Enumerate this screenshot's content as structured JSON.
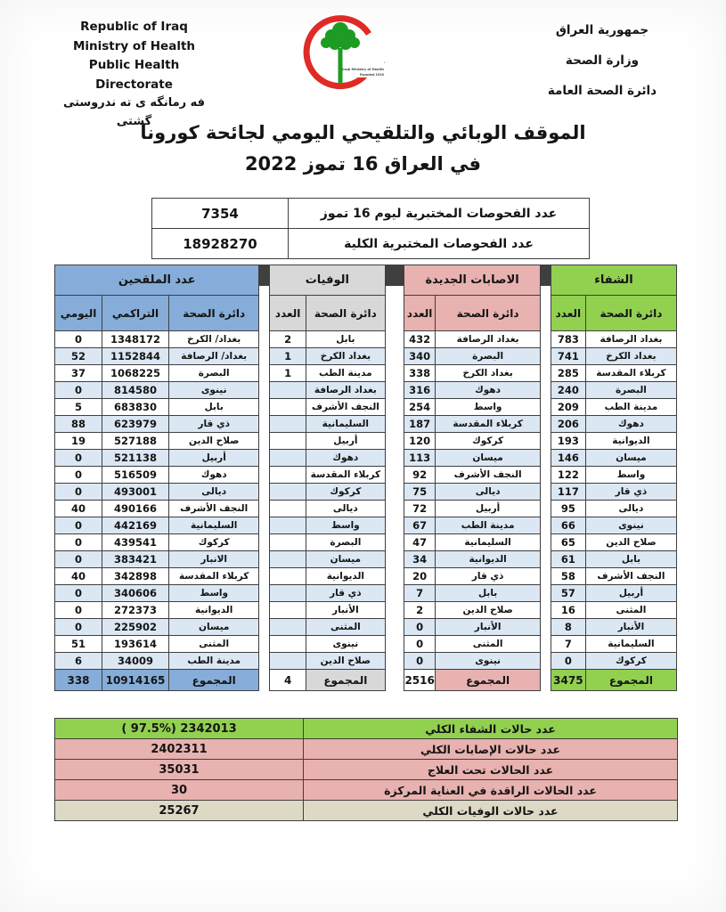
{
  "header": {
    "english": [
      "Republic of Iraq",
      "Ministry of Health",
      "Public Health Directorate"
    ],
    "kurdish": "فه رمانگه ی ته ندروستی گشتی",
    "arabic": [
      "جمهورية العراق",
      "وزارة الصحة",
      "دائرة الصحة العامة"
    ],
    "logo": {
      "arabic": "وزارة الصحة العراقية",
      "english": "Iraqi Ministry of Health",
      "founded": "Founded 1920",
      "crescent_color": "#df2b26",
      "tree_color": "#1e9b22",
      "text_color": "#7a1d1d"
    }
  },
  "title": {
    "line1": "الموقف الوبائي والتلقيحي اليومي لجائحة كورونا",
    "line2": "في العراق  16 تموز 2022"
  },
  "tests": [
    {
      "label": "عدد الفحوصات المختبرية  ليوم 16  تموز",
      "value": "7354"
    },
    {
      "label": "عدد الفحوصات المختبرية الكلية",
      "value": "18928270"
    }
  ],
  "columns": {
    "count": "العدد",
    "dept": "دائرة الصحة",
    "daily": "اليومي",
    "cumulative": "التراكمي"
  },
  "total_label": "المجموع",
  "stripe_color": "#dbe7f3",
  "tables": {
    "recovery": {
      "title": "الشفاء",
      "color": "#92d050",
      "rows": [
        [
          "بغداد الرصافة",
          "783"
        ],
        [
          "بغداد الكرخ",
          "741"
        ],
        [
          "كربلاء المقدسة",
          "285"
        ],
        [
          "البصرة",
          "240"
        ],
        [
          "مدينة الطب",
          "209"
        ],
        [
          "دهوك",
          "206"
        ],
        [
          "الديوانية",
          "193"
        ],
        [
          "ميسان",
          "146"
        ],
        [
          "واسط",
          "122"
        ],
        [
          "ذي قار",
          "117"
        ],
        [
          "ديالى",
          "95"
        ],
        [
          "نينوى",
          "66"
        ],
        [
          "صلاح الدين",
          "65"
        ],
        [
          "بابل",
          "61"
        ],
        [
          "النجف الأشرف",
          "58"
        ],
        [
          "أربيل",
          "57"
        ],
        [
          "المثنى",
          "16"
        ],
        [
          "الأنبار",
          "8"
        ],
        [
          "السليمانية",
          "7"
        ],
        [
          "كركوك",
          "0"
        ]
      ],
      "total": "3475",
      "total_value_bg": "#92d050"
    },
    "infections": {
      "title": "الاصابات الجديدة",
      "color": "#e8b2b0",
      "rows": [
        [
          "بغداد الرصافة",
          "432"
        ],
        [
          "البصرة",
          "340"
        ],
        [
          "بغداد الكرخ",
          "338"
        ],
        [
          "دهوك",
          "316"
        ],
        [
          "واسط",
          "254"
        ],
        [
          "كربلاء المقدسة",
          "187"
        ],
        [
          "كركوك",
          "120"
        ],
        [
          "ميسان",
          "113"
        ],
        [
          "النجف الأشرف",
          "92"
        ],
        [
          "ديالى",
          "75"
        ],
        [
          "أربيل",
          "72"
        ],
        [
          "مدينة الطب",
          "67"
        ],
        [
          "السليمانية",
          "47"
        ],
        [
          "الديوانية",
          "34"
        ],
        [
          "ذي قار",
          "20"
        ],
        [
          "بابل",
          "7"
        ],
        [
          "صلاح الدين",
          "2"
        ],
        [
          "الأنبار",
          "0"
        ],
        [
          "المثنى",
          "0"
        ],
        [
          "نينوى",
          "0"
        ]
      ],
      "total": "2516",
      "total_value_bg": "#ffffff"
    },
    "deaths": {
      "title": "الوفيات",
      "color": "#d8d8d8",
      "rows": [
        [
          "بابل",
          "2"
        ],
        [
          "بغداد الكرخ",
          "1"
        ],
        [
          "مدينة الطب",
          "1"
        ],
        [
          "بغداد الرصافة",
          ""
        ],
        [
          "النجف الأشرف",
          ""
        ],
        [
          "السليمانية",
          ""
        ],
        [
          "أربيل",
          ""
        ],
        [
          "دهوك",
          ""
        ],
        [
          "كربلاء المقدسة",
          ""
        ],
        [
          "كركوك",
          ""
        ],
        [
          "ديالى",
          ""
        ],
        [
          "واسط",
          ""
        ],
        [
          "البصرة",
          ""
        ],
        [
          "ميسان",
          ""
        ],
        [
          "الديوانية",
          ""
        ],
        [
          "ذي قار",
          ""
        ],
        [
          "الأنبار",
          ""
        ],
        [
          "المثنى",
          ""
        ],
        [
          "نينوى",
          ""
        ],
        [
          "صلاح الدين",
          ""
        ]
      ],
      "total": "4",
      "total_value_bg": "#ffffff"
    },
    "vaccinated": {
      "title": "عدد الملقحين",
      "color": "#86add9",
      "rows": [
        [
          "بغداد/ الكرخ",
          "1348172",
          "0"
        ],
        [
          "بغداد/ الرصافة",
          "1152844",
          "52"
        ],
        [
          "البصرة",
          "1068225",
          "37"
        ],
        [
          "نينوى",
          "814580",
          "0"
        ],
        [
          "بابل",
          "683830",
          "5"
        ],
        [
          "ذي قار",
          "623979",
          "88"
        ],
        [
          "صلاح الدين",
          "527188",
          "19"
        ],
        [
          "أربيل",
          "521138",
          "0"
        ],
        [
          "دهوك",
          "516509",
          "0"
        ],
        [
          "ديالى",
          "493001",
          "0"
        ],
        [
          "النجف الأشرف",
          "490166",
          "40"
        ],
        [
          "السليمانية",
          "442169",
          "0"
        ],
        [
          "كركوك",
          "439541",
          "0"
        ],
        [
          "الانبار",
          "383421",
          "0"
        ],
        [
          "كربلاء المقدسة",
          "342898",
          "40"
        ],
        [
          "واسط",
          "340606",
          "0"
        ],
        [
          "الديوانية",
          "272373",
          "0"
        ],
        [
          "ميسان",
          "225902",
          "0"
        ],
        [
          "المثنى",
          "193614",
          "51"
        ],
        [
          "مدينة الطب",
          "34009",
          "6"
        ]
      ],
      "total_cumulative": "10914165",
      "total_daily": "338"
    }
  },
  "summary": [
    {
      "label": "عدد حالات الشفاء الكلي",
      "value": "( 97.5%)  2342013",
      "bg": "#92d050"
    },
    {
      "label": "عدد حالات الإصابات الكلي",
      "value": "2402311",
      "bg": "#e8b2b0"
    },
    {
      "label": "عدد الحالات تحت العلاج",
      "value": "35031",
      "bg": "#e8b2b0"
    },
    {
      "label": "عدد الحالات الراقدة في العناية المركزة",
      "value": "30",
      "bg": "#e8b2b0"
    },
    {
      "label": "عدد حالات الوفيات الكلي",
      "value": "25267",
      "bg": "#ddd9c4"
    }
  ]
}
